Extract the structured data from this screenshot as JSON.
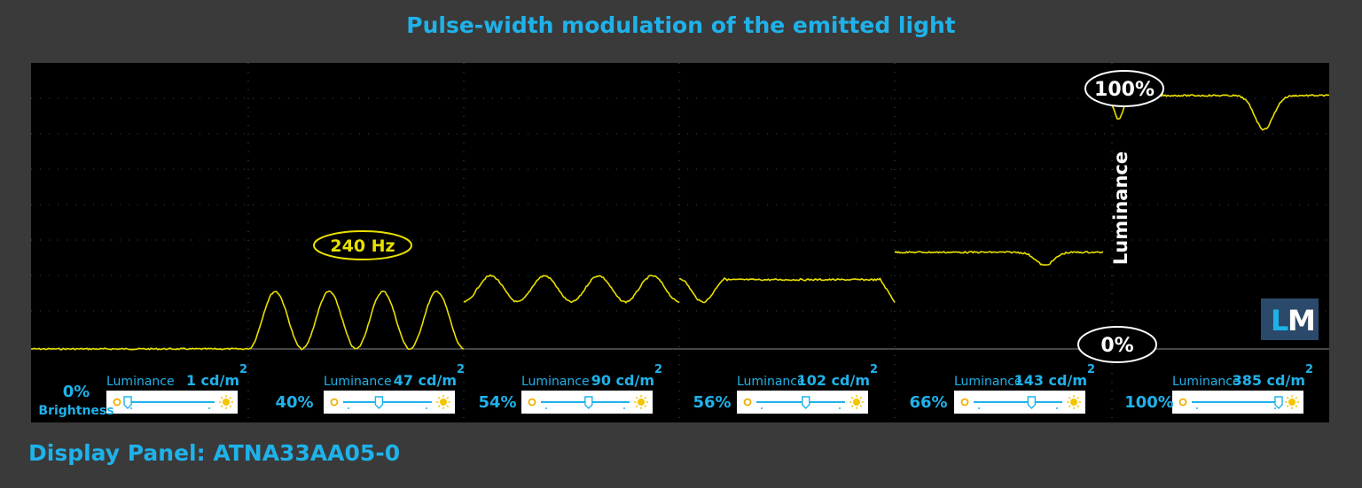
{
  "title": "Pulse-width modulation of the emitted light",
  "footer": "Display Panel: ATNA33AA05-0",
  "colors": {
    "background": "#3a3a3a",
    "plot": "#000000",
    "trace": "#e8e000",
    "accent": "#1fb2ea",
    "logo_bg": "#2b4a6b"
  },
  "annotations": {
    "frequency": "240 Hz",
    "top_marker": "100%",
    "bottom_marker": "0%",
    "y_label": "Luminance",
    "logo_l": "L",
    "logo_m": "M"
  },
  "chart_data": {
    "type": "line",
    "title": "Pulse-width modulation of the emitted light",
    "ylabel": "Luminance",
    "ylim": [
      "0%",
      "100%"
    ],
    "frequency": "240 Hz",
    "grid": true,
    "segments": [
      {
        "brightness": "0%",
        "brightness_label": "Brightness",
        "luminance_label": "Luminance",
        "luminance_value": "1 cd/m",
        "superscript": "2",
        "slider": 0.0,
        "waveform": "flat",
        "level": 0.0
      },
      {
        "brightness": "40%",
        "luminance_label": "Luminance",
        "luminance_value": "47 cd/m",
        "superscript": "2",
        "slider": 0.4,
        "waveform": "pulsed",
        "min": 0.0,
        "max": 0.22,
        "cycles": 4
      },
      {
        "brightness": "54%",
        "luminance_label": "Luminance",
        "luminance_value": "90 cd/m",
        "superscript": "2",
        "slider": 0.54,
        "waveform": "pulsed",
        "min": 0.18,
        "max": 0.28,
        "cycles": 4
      },
      {
        "brightness": "56%",
        "luminance_label": "Luminance",
        "luminance_value": "102 cd/m",
        "superscript": "2",
        "slider": 0.56,
        "waveform": "mostly-flat",
        "min": 0.18,
        "max": 0.27
      },
      {
        "brightness": "66%",
        "luminance_label": "Luminance",
        "luminance_value": "143 cd/m",
        "superscript": "2",
        "slider": 0.66,
        "waveform": "flat-with-dip",
        "level": 0.37
      },
      {
        "brightness": "100%",
        "luminance_label": "Luminance",
        "luminance_value": "385 cd/m",
        "superscript": "2",
        "slider": 1.0,
        "waveform": "flat-with-dip",
        "level": 0.97
      }
    ]
  }
}
